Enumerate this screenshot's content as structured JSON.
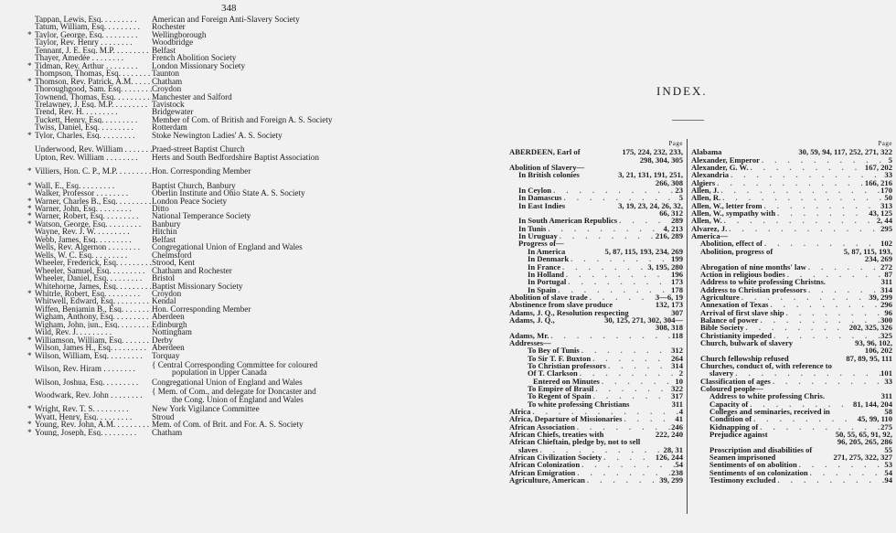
{
  "left_page": {
    "page_number": "348",
    "entries": [
      {
        "star": false,
        "name": "Tappan, Lewis, Esq.",
        "place": "American and Foreign Anti-Slavery Society"
      },
      {
        "star": false,
        "name": "Tatum, William, Esq.",
        "place": "Rochester"
      },
      {
        "star": true,
        "name": "Taylor, George, Esq.",
        "place": "Wellingborough"
      },
      {
        "star": false,
        "name": "Taylor, Rev. Henry",
        "place": "Woodbridge"
      },
      {
        "star": false,
        "name": "Tennant, J. E. Esq. M.P.",
        "place": "Belfast"
      },
      {
        "star": false,
        "name": "Thayer, Amedée",
        "place": "French Abolition Society"
      },
      {
        "star": true,
        "name": "Tidman, Rev. Arthur",
        "place": "London Missionary Society"
      },
      {
        "star": false,
        "name": "Thompson, Thomas, Esq.",
        "place": "Taunton"
      },
      {
        "star": true,
        "name": "Thomson, Rev. Patrick, A.M.",
        "place": "Chatham"
      },
      {
        "star": false,
        "name": "Thoroughgood, Sam. Esq.",
        "place": "Croydon"
      },
      {
        "star": false,
        "name": "Townend, Thomas, Esq.",
        "place": "Manchester and Salford"
      },
      {
        "star": false,
        "name": "Trelawney, J. Esq. M.P.",
        "place": "Tavistock"
      },
      {
        "star": false,
        "name": "Trend, Rev. H.",
        "place": "Bridgewater"
      },
      {
        "star": false,
        "name": "Tuckett, Henry, Esq.",
        "place": "Member of Com. of British and Foreign A. S. Society"
      },
      {
        "star": false,
        "name": "Twiss, Daniel, Esq.",
        "place": "Rotterdam"
      },
      {
        "star": true,
        "name": "Tylor, Charles, Esq.",
        "place": "Stoke Newington Ladies' A. S. Society"
      },
      {
        "star": false,
        "gap": true,
        "name": "Underwood, Rev. William",
        "place": "Praed-street Baptist Church"
      },
      {
        "star": false,
        "name": "Upton, Rev. William",
        "place": "Herts and South Bedfordshire Baptist Association"
      },
      {
        "star": true,
        "gap": true,
        "name": "Villiers, Hon. C. P., M.P.",
        "place": "Hon. Corresponding Member"
      },
      {
        "star": true,
        "gap": true,
        "name": "Wall, E., Esq.",
        "place": "Baptist Church, Banbury"
      },
      {
        "star": false,
        "name": "Walker, Professor",
        "place": "Oberlin Institute and Ohio State A. S. Society"
      },
      {
        "star": true,
        "name": "Warner, Charles B., Esq.",
        "place": "London Peace Society"
      },
      {
        "star": true,
        "name": "Warner, John, Esq.",
        "place": "Ditto"
      },
      {
        "star": true,
        "name": "Warner, Robert, Esq.",
        "place": "National Temperance Society"
      },
      {
        "star": true,
        "name": "Watson, George, Esq.",
        "place": "Banbury"
      },
      {
        "star": false,
        "name": "Wayne, Rev. J. W.",
        "place": "Hitchin"
      },
      {
        "star": false,
        "name": "Webb, James, Esq.",
        "place": "Belfast"
      },
      {
        "star": false,
        "name": "Wells, Rev. Algernon",
        "place": "Congregational Union of England and Wales"
      },
      {
        "star": false,
        "name": "Wells, W. C. Esq.",
        "place": "Chelmsford"
      },
      {
        "star": false,
        "name": "Wheeler, Frederick, Esq.",
        "place": "Strood, Kent"
      },
      {
        "star": false,
        "name": "Wheeler, Samuel, Esq.",
        "place": "Chatham and Rochester"
      },
      {
        "star": false,
        "name": "Wheeler, Daniel, Esq.",
        "place": "Bristol"
      },
      {
        "star": false,
        "name": "Whitehorne, James, Esq.",
        "place": "Baptist Missionary Society"
      },
      {
        "star": true,
        "name": "Whitrle, Robert, Esq.",
        "place": "Croydon"
      },
      {
        "star": false,
        "name": "Whitwell, Edward, Esq.",
        "place": "Kendal"
      },
      {
        "star": false,
        "name": "Wiffen, Benjamin B., Esq.",
        "place": "Hon. Corresponding Member"
      },
      {
        "star": false,
        "name": "Wigham, Anthony, Esq.",
        "place": "Aberdeen"
      },
      {
        "star": false,
        "name": "Wigham, John, jun., Esq.",
        "place": "Edinburgh"
      },
      {
        "star": false,
        "name": "Wild, Rev. J.",
        "place": "Nottingham"
      },
      {
        "star": true,
        "name": "Williamson, William, Esq.",
        "place": "Derby"
      },
      {
        "star": false,
        "name": "Wilson, James H., Esq.",
        "place": "Aberdeen"
      },
      {
        "star": true,
        "name": "Wilson, William, Esq.",
        "place": "Torquay"
      },
      {
        "star": false,
        "name": "Wilson, Rev. Hiram",
        "place": "Central Corresponding Committee for coloured",
        "place2": "population in Upper Canada"
      },
      {
        "star": false,
        "name": "Wilson, Joshua, Esq.",
        "place": "Congregational Union of England and Wales"
      },
      {
        "star": false,
        "name": "Woodwark, Rev. John",
        "place": "Mem. of Com., and delegate for Doncaster and",
        "place2": "the Cong. Union of England and Wales"
      },
      {
        "star": true,
        "name": "Wright, Rev. T. S.",
        "place": "New York Vigilance Committee"
      },
      {
        "star": false,
        "name": "Wyatt, Henry, Esq.",
        "place": "Stroud"
      },
      {
        "star": true,
        "name": "Young, Rev. John, A.M.",
        "place": "Mem. of Com. of Brit. and For. A. S. Society"
      },
      {
        "star": true,
        "name": "Young, Joseph, Esq.",
        "place": "Chatham"
      }
    ]
  },
  "index_page": {
    "title": "INDEX.",
    "page_header": "Page",
    "columns": [
      [
        {
          "t": "ABERDEEN, Earl of",
          "p": "175, 224, 232, 233,",
          "p2": "298, 304, 305"
        },
        {
          "t": "Abolition of Slavery—",
          "p": ""
        },
        {
          "t": "In British colonies",
          "i": 1,
          "p": "3, 21, 131, 191, 251,",
          "p2": "266, 308"
        },
        {
          "t": "In Ceylon",
          "i": 1,
          "p": "23",
          "dots": true
        },
        {
          "t": "In Damascus",
          "i": 1,
          "p": "5",
          "dots": true
        },
        {
          "t": "In East Indies",
          "i": 1,
          "p": "3, 19, 23, 24, 26, 32,",
          "p2": "66, 312"
        },
        {
          "t": "In South American Republics",
          "i": 1,
          "p": "289",
          "dots": true
        },
        {
          "t": "In Tunis",
          "i": 1,
          "p": "4, 213",
          "dots": true
        },
        {
          "t": "In Uruguay",
          "i": 1,
          "p": "216, 289",
          "dots": true
        },
        {
          "t": "Progress of—",
          "i": 1,
          "p": ""
        },
        {
          "t": "In America",
          "i": 2,
          "p": "5, 87, 115, 193, 234, 269"
        },
        {
          "t": "In Denmark",
          "i": 2,
          "p": "199",
          "dots": true
        },
        {
          "t": "In France",
          "i": 2,
          "p": "3, 195, 280",
          "dots": true
        },
        {
          "t": "In Holland",
          "i": 2,
          "p": "196",
          "dots": true
        },
        {
          "t": "In Portugal",
          "i": 2,
          "p": "173",
          "dots": true
        },
        {
          "t": "In Spain",
          "i": 2,
          "p": "178",
          "dots": true
        },
        {
          "t": "Abolition of slave trade",
          "p": "3—6, 19",
          "dots": true
        },
        {
          "t": "Abstinence from slave produce",
          "p": "132, 173"
        },
        {
          "t": "Adams, J. Q., Resolution respecting",
          "p": "307"
        },
        {
          "t": "Adams, J. Q.,",
          "p": "30, 125, 271, 302, 304—",
          "p2": "308, 318"
        },
        {
          "t": "Adams, Mr.",
          "p": "118",
          "dots": true
        },
        {
          "t": "Addresses—",
          "p": ""
        },
        {
          "t": "To Bey of Tunis",
          "i": 2,
          "p": "312",
          "dots": true
        },
        {
          "t": "To Sir T. F. Buxton",
          "i": 2,
          "p": "264",
          "dots": true
        },
        {
          "t": "To Christian professors",
          "i": 2,
          "p": "314",
          "dots": true
        },
        {
          "t": "Of T. Clarkson",
          "i": 2,
          "p": "2",
          "dots": true
        },
        {
          "t": "Entered on Minutes",
          "i": 3,
          "p": "10",
          "dots": true
        },
        {
          "t": "To Empire of Brasil",
          "i": 2,
          "p": "322",
          "dots": true
        },
        {
          "t": "To Regent of Spain",
          "i": 2,
          "p": "317",
          "dots": true
        },
        {
          "t": "To white professing Christians",
          "i": 2,
          "p": "311"
        },
        {
          "t": "Africa",
          "p": "4",
          "dots": true
        },
        {
          "t": "Africa, Departure of Missionaries",
          "p": "41",
          "dots": true
        },
        {
          "t": "African Association",
          "p": "246",
          "dots": true
        },
        {
          "t": "African Chiefs, treaties with",
          "p": "222, 240"
        },
        {
          "t": "African Chieftain, pledge by, not to sell",
          "p": "",
          "wrap": true
        },
        {
          "t": "slaves",
          "i": 1,
          "p": "28, 31",
          "dots": true
        },
        {
          "t": "African Civilization Society",
          "p": "126, 244",
          "dots": true
        },
        {
          "t": "African Colonization",
          "p": "54",
          "dots": true
        },
        {
          "t": "African Emigration",
          "p": "238",
          "dots": true
        },
        {
          "t": "Agriculture, American",
          "p": "39, 299",
          "dots": true
        }
      ],
      [
        {
          "t": "Alabama",
          "p": "30, 59, 94, 117, 252, 271, 322"
        },
        {
          "t": "Alexander, Emperor",
          "p": "5",
          "dots": true
        },
        {
          "t": "Alexander, G. W.",
          "p": "167, 202",
          "dots": true
        },
        {
          "t": "Alexandria",
          "p": "33",
          "dots": true
        },
        {
          "t": "Algiers",
          "p": "166, 216",
          "dots": true
        },
        {
          "t": "Allen, J.",
          "p": "170",
          "dots": true
        },
        {
          "t": "Allen, R.",
          "p": "50",
          "dots": true
        },
        {
          "t": "Allen, W., letter from",
          "p": "313",
          "dots": true
        },
        {
          "t": "Allen, W., sympathy with",
          "p": "43, 125",
          "dots": true
        },
        {
          "t": "Allen, W.",
          "p": "2, 44",
          "dots": true
        },
        {
          "t": "Alvarez, J.",
          "p": "295",
          "dots": true
        },
        {
          "t": "America—",
          "p": ""
        },
        {
          "t": "Abolition, effect of",
          "i": 1,
          "p": "102",
          "dots": true
        },
        {
          "t": "Abolition, progress of",
          "i": 1,
          "p": "5, 87, 115, 193,",
          "p2": "234, 269"
        },
        {
          "t": "Abrogation of nine months' law",
          "i": 1,
          "p": "272",
          "dots": true
        },
        {
          "t": "Action in religious bodies",
          "i": 1,
          "p": "87",
          "dots": true
        },
        {
          "t": "Address to white professing Christns.",
          "i": 1,
          "p": "311"
        },
        {
          "t": "Address to Christian professors",
          "i": 1,
          "p": "314",
          "dots": true
        },
        {
          "t": "Agriculture",
          "i": 1,
          "p": "39, 299",
          "dots": true
        },
        {
          "t": "Annexation of Texas",
          "i": 1,
          "p": "296",
          "dots": true
        },
        {
          "t": "Arrival of first slave ship",
          "i": 1,
          "p": "96",
          "dots": true
        },
        {
          "t": "Balance of power",
          "i": 1,
          "p": "300",
          "dots": true
        },
        {
          "t": "Bible Society",
          "i": 1,
          "p": "202, 325, 326",
          "dots": true
        },
        {
          "t": "Christianity impeded",
          "i": 1,
          "p": "325",
          "dots": true
        },
        {
          "t": "Church, bulwark of slavery",
          "i": 1,
          "p": "93, 96, 102,",
          "p2": "106, 202"
        },
        {
          "t": "Church fellowship refused",
          "i": 1,
          "p": "87, 89, 95, 111"
        },
        {
          "t": "Churches, conduct of, with reference to",
          "i": 1,
          "p": "",
          "wrap": true
        },
        {
          "t": "slavery",
          "i": 2,
          "p": "101",
          "dots": true
        },
        {
          "t": "Classification of ages",
          "i": 1,
          "p": "33",
          "dots": true
        },
        {
          "t": "Coloured people—",
          "i": 1,
          "p": ""
        },
        {
          "t": "Address to white professing Chris.",
          "i": 2,
          "p": "311"
        },
        {
          "t": "Capacity of",
          "i": 2,
          "p": "81, 144, 204",
          "dots": true
        },
        {
          "t": "Colleges and seminaries, received in",
          "i": 2,
          "p": "58"
        },
        {
          "t": "Condition of",
          "i": 2,
          "p": "45, 99, 110",
          "dots": true
        },
        {
          "t": "Kidnapping of",
          "i": 2,
          "p": "275",
          "dots": true
        },
        {
          "t": "Prejudice against",
          "i": 2,
          "p": "50, 55, 65, 91, 92,",
          "p2": "96, 205, 265, 286"
        },
        {
          "t": "Proscription and disabilities of",
          "i": 2,
          "p": "55"
        },
        {
          "t": "Seamen imprisoned",
          "i": 2,
          "p": "271, 275, 322, 327"
        },
        {
          "t": "Sentiments of on abolition",
          "i": 2,
          "p": "53",
          "dots": true
        },
        {
          "t": "Sentiments of on colonization",
          "i": 2,
          "p": "54",
          "dots": true
        },
        {
          "t": "Testimony excluded",
          "i": 2,
          "p": "94",
          "dots": true
        }
      ]
    ]
  }
}
